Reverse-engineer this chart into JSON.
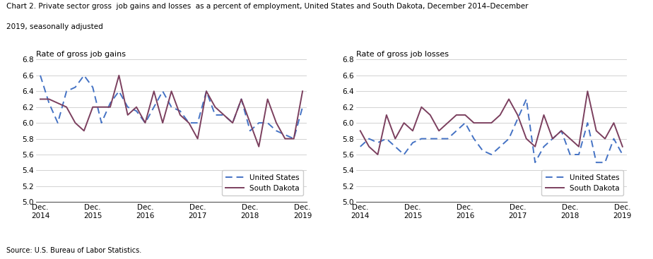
{
  "title_line1": "Chart 2. Private sector gross  job gains and losses  as a percent of employment, United States and South Dakota, December 2014–December",
  "title_line2": "2019, seasonally adjusted",
  "source": "Source: U.S. Bureau of Labor Statistics.",
  "gains_us": [
    6.6,
    6.25,
    6.0,
    6.4,
    6.45,
    6.6,
    6.45,
    6.0,
    6.25,
    6.4,
    6.2,
    6.15,
    6.0,
    6.2,
    6.4,
    6.2,
    6.15,
    6.0,
    6.0,
    6.4,
    6.1,
    6.1,
    6.0,
    6.3,
    5.9,
    6.0,
    6.0,
    5.9,
    5.85,
    5.8,
    6.2
  ],
  "gains_sd": [
    6.3,
    6.3,
    6.25,
    6.2,
    6.0,
    5.9,
    6.2,
    6.2,
    6.2,
    6.6,
    6.1,
    6.2,
    6.0,
    6.4,
    6.0,
    6.4,
    6.1,
    6.0,
    5.8,
    6.4,
    6.2,
    6.1,
    6.0,
    6.3,
    6.0,
    5.7,
    6.3,
    6.0,
    5.8,
    5.8,
    6.4
  ],
  "losses_us": [
    5.7,
    5.8,
    5.75,
    5.8,
    5.7,
    5.6,
    5.75,
    5.8,
    5.8,
    5.8,
    5.8,
    5.9,
    6.0,
    5.8,
    5.65,
    5.6,
    5.7,
    5.8,
    6.05,
    6.3,
    5.5,
    5.7,
    5.8,
    5.9,
    5.6,
    5.6,
    6.0,
    5.5,
    5.5,
    5.8,
    5.6
  ],
  "losses_sd": [
    5.9,
    5.7,
    5.6,
    6.1,
    5.8,
    6.0,
    5.9,
    6.2,
    6.1,
    5.9,
    6.0,
    6.1,
    6.1,
    6.0,
    6.0,
    6.0,
    6.1,
    6.3,
    6.1,
    5.8,
    5.7,
    6.1,
    5.8,
    5.9,
    5.8,
    5.7,
    6.4,
    5.9,
    5.8,
    6.0,
    5.7
  ],
  "us_color": "#4472C4",
  "sd_color": "#7B3F5E",
  "ylim": [
    5.0,
    6.8
  ],
  "yticks": [
    5.0,
    5.2,
    5.4,
    5.6,
    5.8,
    6.0,
    6.2,
    6.4,
    6.6,
    6.8
  ],
  "xtick_labels": [
    "Dec.\n2014",
    "Dec.\n2015",
    "Dec.\n2016",
    "Dec.\n2017",
    "Dec.\n2018",
    "Dec.\n2019"
  ],
  "xtick_positions": [
    0,
    6,
    12,
    18,
    24,
    30
  ],
  "gains_ylabel": "Rate of gross job gains",
  "losses_ylabel": "Rate of gross job losses",
  "n_points": 31
}
